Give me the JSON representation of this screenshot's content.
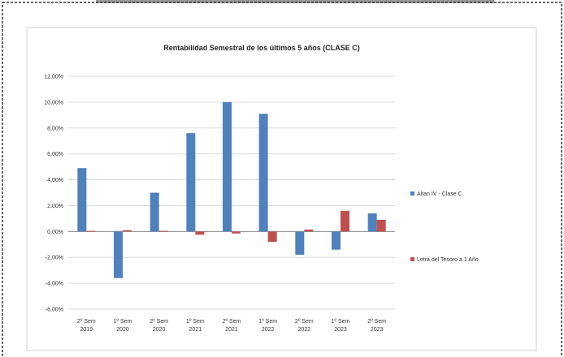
{
  "chart_data": {
    "type": "bar",
    "title": "Rentabilidad Semestral de los últimos 5 años (CLASE C)",
    "categories": [
      [
        "2º Sem",
        "2019"
      ],
      [
        "1º Sem",
        "2020"
      ],
      [
        "2º Sem",
        "2020"
      ],
      [
        "1º Sem",
        "2021"
      ],
      [
        "2º Sem",
        "2021"
      ],
      [
        "1º Sem",
        "2022"
      ],
      [
        "2º Sem",
        "2022"
      ],
      [
        "1º Sem",
        "2023"
      ],
      [
        "2º Sem",
        "2023"
      ]
    ],
    "series": [
      {
        "name": "Altan IV - Clase C",
        "color": "#4f81bd",
        "values": [
          4.9,
          -3.6,
          3.0,
          7.6,
          10.0,
          9.1,
          -1.8,
          -1.4,
          1.4
        ]
      },
      {
        "name": "Letra del Tesoro a 1 Año",
        "color": "#c0504d",
        "values": [
          0.05,
          0.1,
          0.05,
          -0.25,
          -0.15,
          -0.8,
          0.15,
          1.6,
          0.9
        ]
      }
    ],
    "ylim": [
      -6,
      12
    ],
    "yticks": [
      "12,00%",
      "10,00%",
      "8,00%",
      "6,00%",
      "4,00%",
      "2,00%",
      "0,00%",
      "-2,00%",
      "-4,00%",
      "-6,00%"
    ],
    "ytick_values": [
      12,
      10,
      8,
      6,
      4,
      2,
      0,
      -2,
      -4,
      -6
    ],
    "grid": true,
    "legend_position": "right"
  }
}
